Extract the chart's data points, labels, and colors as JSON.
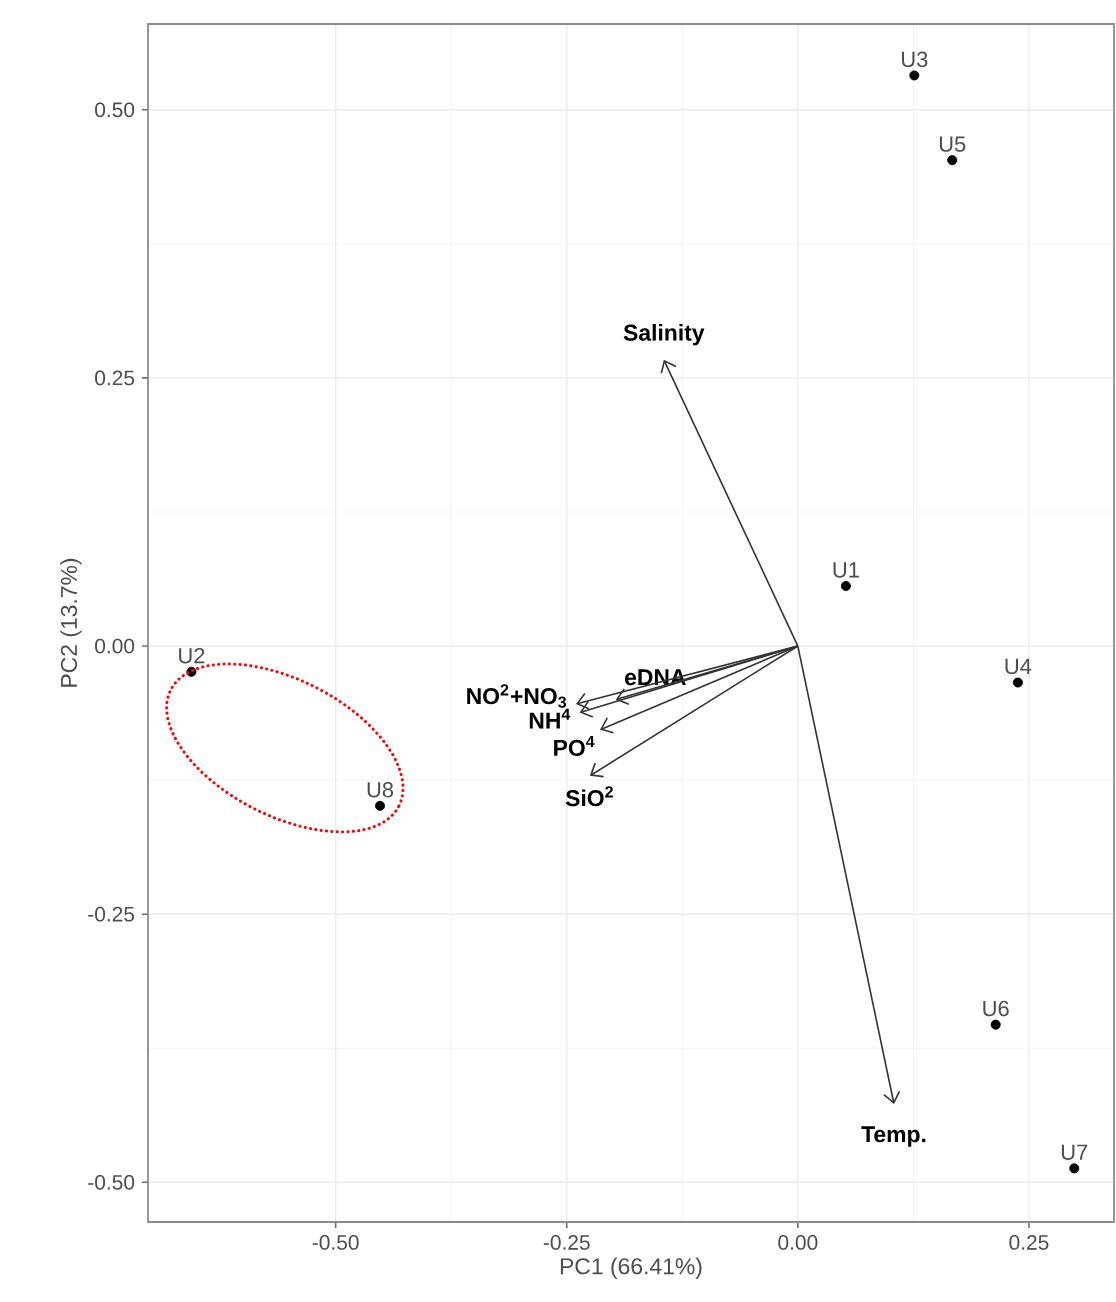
{
  "chart_data": {
    "type": "scatter",
    "xlabel": "PC1 (66.41%)",
    "ylabel": "PC2 (13.7%)",
    "xlim": [
      -0.703,
      0.342
    ],
    "ylim": [
      -0.537,
      0.58
    ],
    "xticks": [
      {
        "value": -0.5,
        "label": "-0.50"
      },
      {
        "value": -0.25,
        "label": "-0.25"
      },
      {
        "value": 0,
        "label": "0.00"
      },
      {
        "value": 0.25,
        "label": "0.25"
      }
    ],
    "yticks": [
      {
        "value": -0.5,
        "label": "-0.50"
      },
      {
        "value": -0.25,
        "label": "-0.25"
      },
      {
        "value": 0,
        "label": "0.00"
      },
      {
        "value": 0.25,
        "label": "0.25"
      },
      {
        "value": 0.5,
        "label": "0.50"
      }
    ],
    "grid": true,
    "series": [
      {
        "name": "U1",
        "color": "#000000",
        "x": [
          0.052
        ],
        "values": [
          0.056
        ]
      },
      {
        "name": "U2",
        "color": "#000000",
        "x": [
          -0.656
        ],
        "values": [
          -0.024
        ]
      },
      {
        "name": "U3",
        "color": "#000000",
        "x": [
          0.126
        ],
        "values": [
          0.532
        ]
      },
      {
        "name": "U4",
        "color": "#000000",
        "x": [
          0.238
        ],
        "values": [
          -0.034
        ]
      },
      {
        "name": "U5",
        "color": "#000000",
        "x": [
          0.167
        ],
        "values": [
          0.453
        ]
      },
      {
        "name": "U6",
        "color": "#000000",
        "x": [
          0.214
        ],
        "values": [
          -0.353
        ]
      },
      {
        "name": "U7",
        "color": "#000000",
        "x": [
          0.299
        ],
        "values": [
          -0.487
        ]
      },
      {
        "name": "U8",
        "color": "#000000",
        "x": [
          -0.452
        ],
        "values": [
          -0.149
        ]
      }
    ],
    "annotations": [
      "Salinity",
      "Temp.",
      "eDNA",
      "NO$^{2}$+NO$_{3}$",
      "NH$^{4}$",
      "PO$^{4}$",
      "SiO$^{2}$"
    ]
  }
}
